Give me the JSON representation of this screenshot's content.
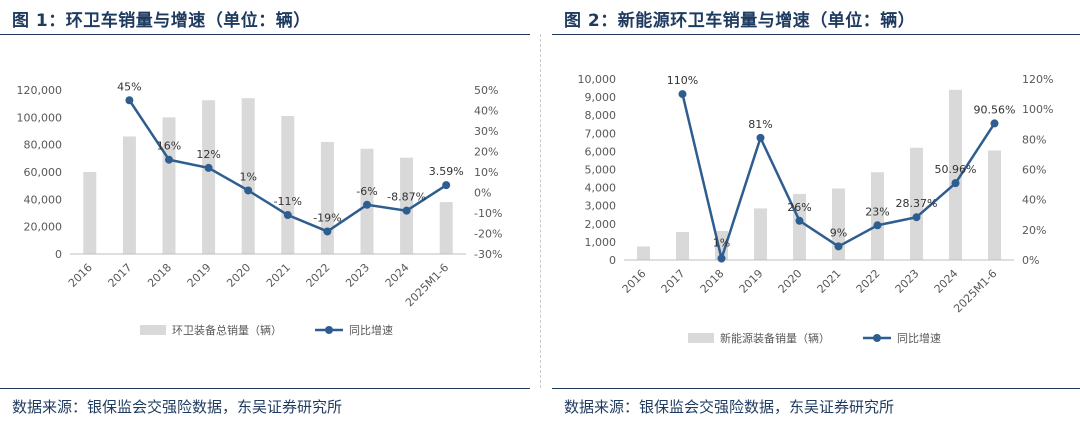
{
  "panels": {
    "left": {
      "title": "图 1：环卫车销量与增速（单位：辆）",
      "source": "数据来源：银保监会交强险数据，东吴证券研究所"
    },
    "right": {
      "title": "图 2：新能源环卫车销量与增速（单位：辆）",
      "source": "数据来源：银保监会交强险数据，东吴证券研究所"
    }
  },
  "colors": {
    "bar": "#d9d9d9",
    "line": "#2e5d8f",
    "title": "#1f3a5f",
    "axis_text": "#595959"
  },
  "chart_data": [
    {
      "type": "bar",
      "categories": [
        "2016",
        "2017",
        "2018",
        "2019",
        "2020",
        "2021",
        "2022",
        "2023",
        "2024",
        "2025M1-6"
      ],
      "series": [
        {
          "name": "环卫装备总销量（辆）",
          "type": "bar",
          "axis": "left",
          "values": [
            60000,
            86000,
            100000,
            112500,
            114000,
            101000,
            82000,
            77000,
            70500,
            38000
          ]
        },
        {
          "name": "同比增速",
          "type": "line",
          "axis": "right",
          "values": [
            null,
            45,
            16,
            12,
            1,
            -11,
            -19,
            -6,
            -8.87,
            3.59
          ],
          "labels": [
            "",
            "45%",
            "16%",
            "12%",
            "1%",
            "-11%",
            "-19%",
            "-6%",
            "-8.87%",
            "3.59%"
          ]
        }
      ],
      "y_left": {
        "min": 0,
        "max": 120000,
        "ticks": [
          "0",
          "20,000",
          "40,000",
          "60,000",
          "80,000",
          "100,000",
          "120,000"
        ]
      },
      "y_right": {
        "min": -30,
        "max": 50,
        "ticks": [
          "-30%",
          "-20%",
          "-10%",
          "0%",
          "10%",
          "20%",
          "30%",
          "40%",
          "50%"
        ]
      },
      "legend_position": "bottom",
      "grid": false
    },
    {
      "type": "bar",
      "categories": [
        "2016",
        "2017",
        "2018",
        "2019",
        "2020",
        "2021",
        "2022",
        "2023",
        "2024",
        "2025M1-6"
      ],
      "series": [
        {
          "name": "新能源装备销量（辆）",
          "type": "bar",
          "axis": "left",
          "values": [
            750,
            1550,
            1600,
            2850,
            3650,
            3950,
            4850,
            6200,
            9400,
            6050
          ]
        },
        {
          "name": "同比增速",
          "type": "line",
          "axis": "right",
          "values": [
            null,
            110,
            1,
            81,
            26,
            9,
            23,
            28.37,
            50.96,
            90.56
          ],
          "labels": [
            "",
            "110%",
            "1%",
            "81%",
            "26%",
            "9%",
            "23%",
            "28.37%",
            "50.96%",
            "90.56%"
          ]
        }
      ],
      "y_left": {
        "min": 0,
        "max": 10000,
        "ticks": [
          "0",
          "1,000",
          "2,000",
          "3,000",
          "4,000",
          "5,000",
          "6,000",
          "7,000",
          "8,000",
          "9,000",
          "10,000"
        ]
      },
      "y_right": {
        "min": 0,
        "max": 120,
        "ticks": [
          "0%",
          "20%",
          "40%",
          "60%",
          "80%",
          "100%",
          "120%"
        ]
      },
      "legend_position": "bottom",
      "grid": false
    }
  ]
}
